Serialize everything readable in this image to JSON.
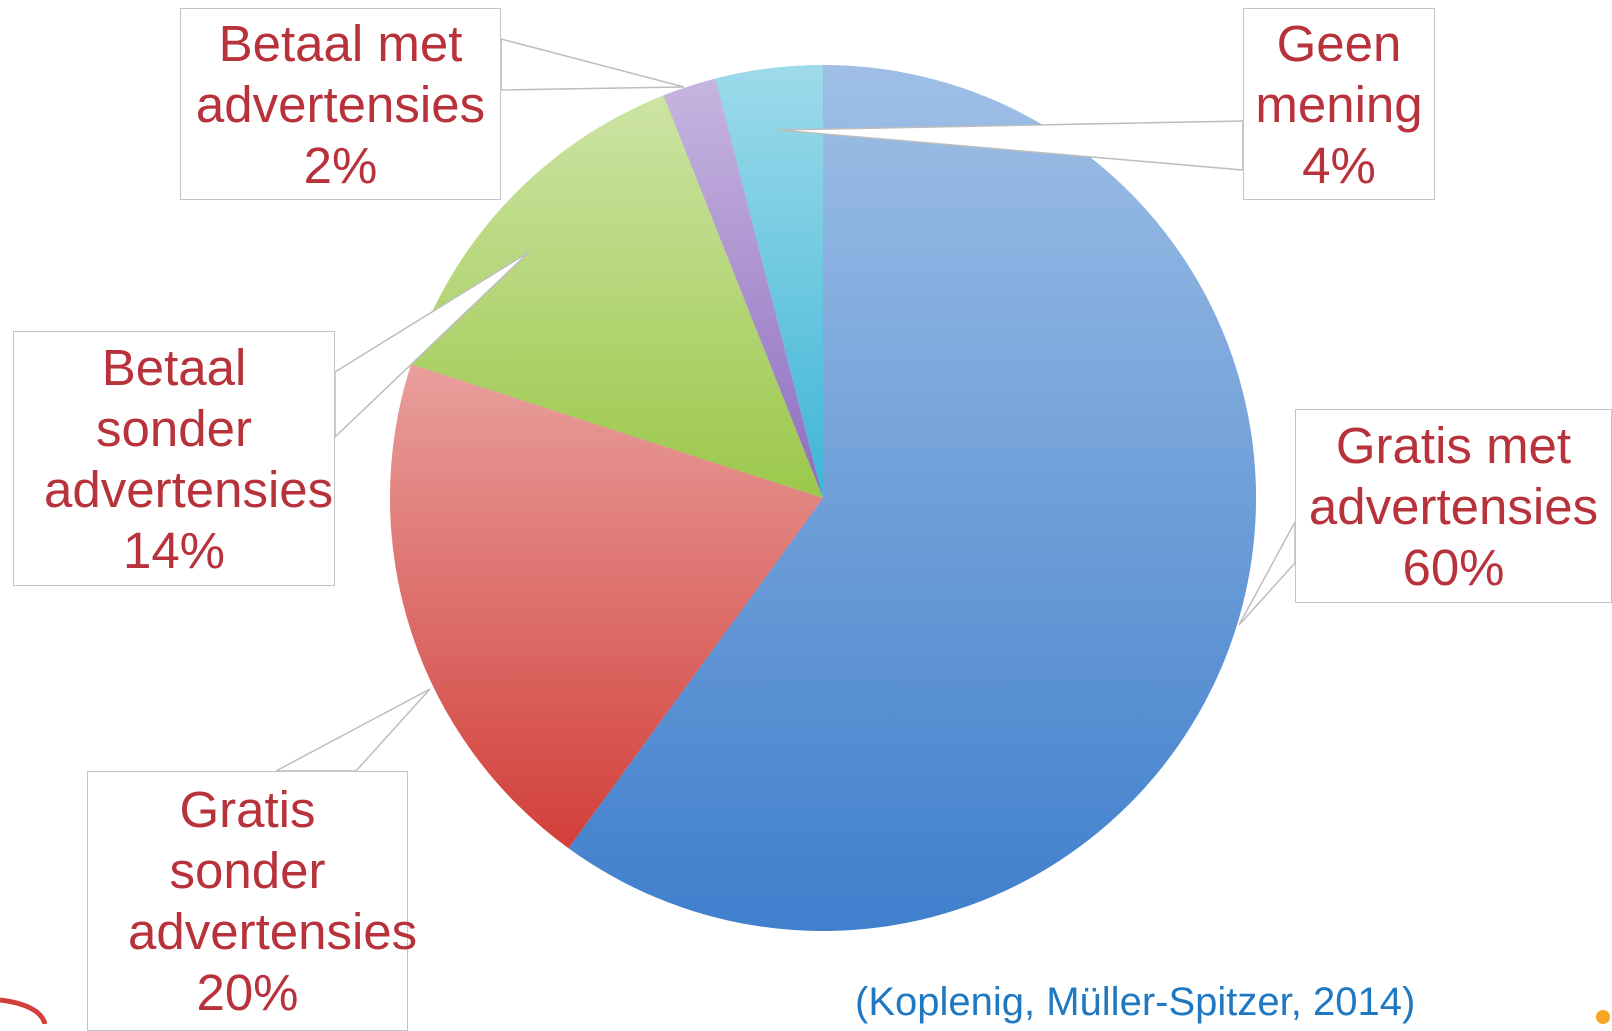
{
  "chart_data": {
    "type": "pie",
    "categories": [
      "Gratis met advertensies",
      "Gratis sonder advertensies",
      "Betaal sonder advertensies",
      "Betaal met advertensies",
      "Geen mening"
    ],
    "values": [
      60,
      20,
      14,
      2,
      4
    ],
    "value_labels": [
      "60%",
      "20%",
      "14%",
      "2%",
      "4%"
    ],
    "colors": [
      "#3f7fcc",
      "#d23f3a",
      "#9bc84a",
      "#8f6cc0",
      "#3db6d6"
    ],
    "source": "(Koplenig, Müller-Spitzer, 2014)"
  }
}
